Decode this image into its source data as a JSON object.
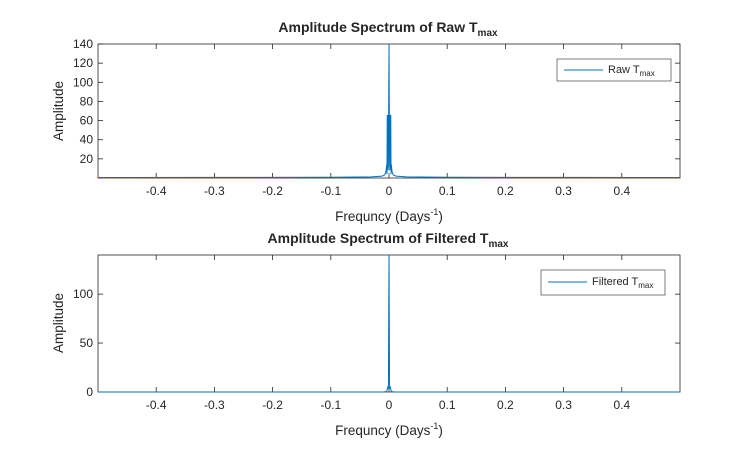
{
  "chart_data": [
    {
      "type": "line",
      "title": "Amplitude Spectrum of Raw T",
      "title_subscript": "max",
      "xlabel": "Frequncy (Days",
      "xlabel_superscript": "-1",
      "xlabel_suffix": ")",
      "ylabel": "Amplitude",
      "xlim": [
        -0.5,
        0.5
      ],
      "ylim": [
        0,
        140
      ],
      "xticks": [
        -0.4,
        -0.3,
        -0.2,
        -0.1,
        0,
        0.1,
        0.2,
        0.3,
        0.4
      ],
      "xtick_labels": [
        "-0.4",
        "-0.3",
        "-0.2",
        "-0.1",
        "0",
        "0.1",
        "0.2",
        "0.3",
        "0.4"
      ],
      "yticks": [
        20,
        40,
        60,
        80,
        100,
        120,
        140
      ],
      "ytick_labels": [
        "20",
        "40",
        "60",
        "80",
        "100",
        "120",
        "140"
      ],
      "grid": false,
      "legend_position": "top-right",
      "color": "#0072BD",
      "series": [
        {
          "name": "Raw T",
          "name_subscript": "max",
          "x": [
            -0.5,
            -0.3,
            -0.1,
            -0.03,
            -0.012,
            -0.008,
            -0.006,
            -0.005,
            -0.004,
            -0.0035,
            -0.003,
            -0.0025,
            -0.002,
            -0.0015,
            -0.001,
            0,
            0.001,
            0.0015,
            0.002,
            0.0025,
            0.003,
            0.0035,
            0.004,
            0.005,
            0.006,
            0.008,
            0.012,
            0.03,
            0.1,
            0.3,
            0.5
          ],
          "y": [
            0.5,
            0.6,
            0.8,
            1.2,
            2,
            3,
            5,
            8,
            14,
            4,
            66,
            10,
            66,
            8,
            14,
            140,
            14,
            8,
            66,
            10,
            66,
            4,
            14,
            8,
            5,
            3,
            2,
            1.2,
            0.8,
            0.6,
            0.5
          ]
        }
      ]
    },
    {
      "type": "line",
      "title": "Amplitude Spectrum of Filtered T",
      "title_subscript": "max",
      "xlabel": "Frequncy (Days",
      "xlabel_superscript": "-1",
      "xlabel_suffix": ")",
      "ylabel": "Amplitude",
      "xlim": [
        -0.5,
        0.5
      ],
      "ylim": [
        0,
        140
      ],
      "xticks": [
        -0.4,
        -0.3,
        -0.2,
        -0.1,
        0,
        0.1,
        0.2,
        0.3,
        0.4
      ],
      "xtick_labels": [
        "-0.4",
        "-0.3",
        "-0.2",
        "-0.1",
        "0",
        "0.1",
        "0.2",
        "0.3",
        "0.4"
      ],
      "yticks": [
        0,
        50,
        100
      ],
      "ytick_labels": [
        "0",
        "50",
        "100"
      ],
      "grid": false,
      "legend_position": "top-right",
      "color": "#0072BD",
      "series": [
        {
          "name": "Filtered T",
          "name_subscript": "max",
          "x": [
            -0.5,
            -0.2,
            -0.01,
            -0.004,
            -0.003,
            -0.002,
            -0.001,
            0,
            0.001,
            0.002,
            0.003,
            0.004,
            0.01,
            0.2,
            0.5
          ],
          "y": [
            0,
            0,
            0,
            0.5,
            3,
            5,
            4,
            140,
            4,
            5,
            3,
            0.5,
            0,
            0,
            0
          ]
        }
      ]
    }
  ]
}
